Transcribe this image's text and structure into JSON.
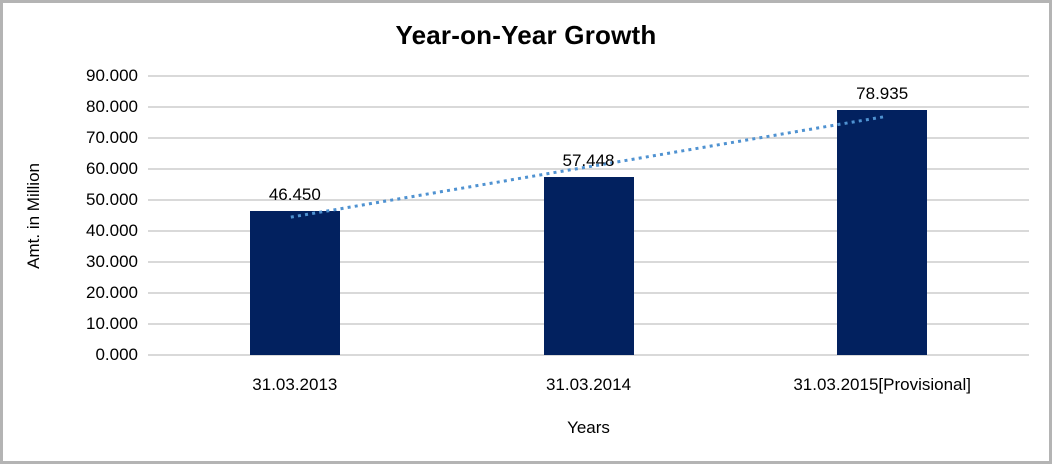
{
  "chart_data": {
    "type": "bar",
    "title": "Year-on-Year Growth",
    "xlabel": "Years",
    "ylabel": "Amt. in Million",
    "categories": [
      "31.03.2013",
      "31.03.2014",
      "31.03.2015[Provisional]"
    ],
    "values": [
      46.45,
      57.448,
      78.935
    ],
    "data_labels": [
      "46.450",
      "57.448",
      "78.935"
    ],
    "ylim": [
      0,
      90
    ],
    "ytick_step": 10,
    "ytick_labels": [
      "0.000",
      "10.000",
      "20.000",
      "30.000",
      "40.000",
      "50.000",
      "60.000",
      "70.000",
      "80.000",
      "90.000"
    ],
    "grid": "horizontal",
    "legend": "none",
    "bar_color": "#02215f",
    "gridline_color": "#d9d9d9",
    "trendline": {
      "type": "linear",
      "style": "dotted",
      "color": "#4f92d1"
    }
  }
}
